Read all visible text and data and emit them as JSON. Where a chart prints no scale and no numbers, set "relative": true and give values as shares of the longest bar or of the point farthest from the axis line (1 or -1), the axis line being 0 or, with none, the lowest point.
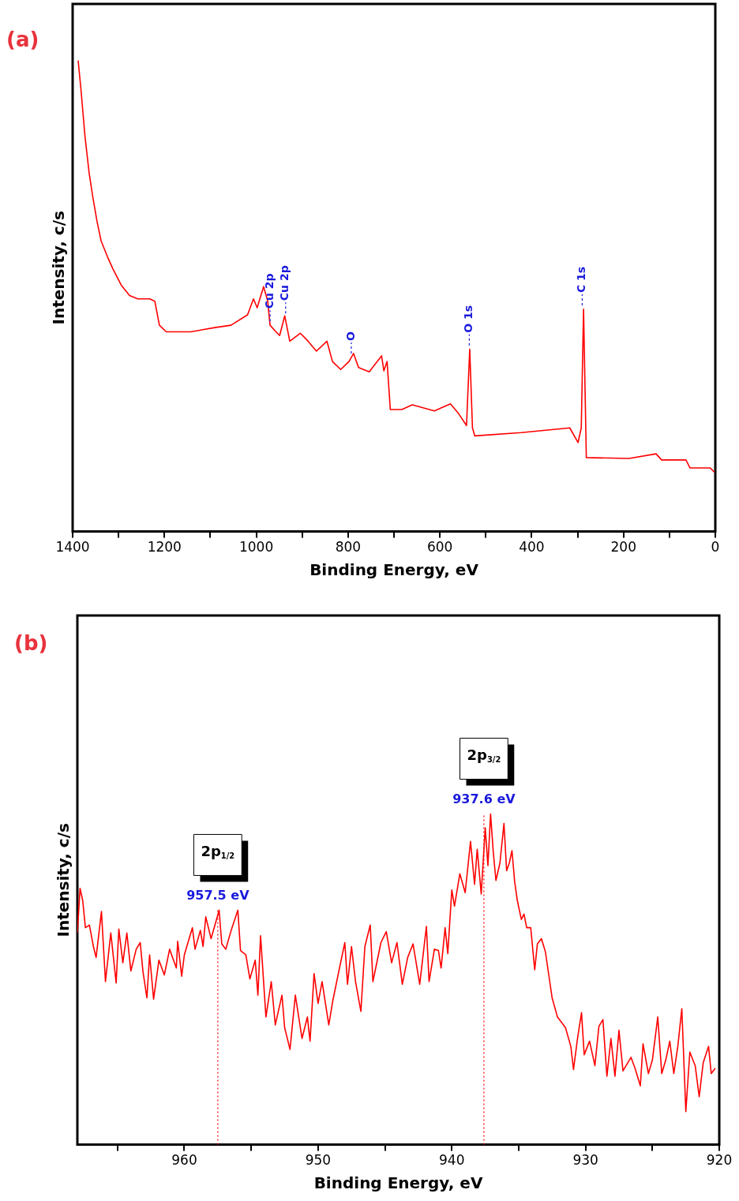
{
  "chart_data": [
    {
      "type": "line",
      "title": "(a)",
      "xlabel": "Binding Energy, eV",
      "ylabel": "Intensity, c/s",
      "relative": true,
      "xlim": [
        1400,
        0
      ],
      "xticks": [
        1400,
        {
          "value": 1300,
          "label": null
        },
        1200,
        {
          "value": 1100,
          "label": null
        },
        1000,
        {
          "value": 900,
          "label": null
        },
        800,
        {
          "value": 700,
          "label": null
        },
        600,
        {
          "value": 500,
          "label": null
        },
        400,
        {
          "value": 300,
          "label": null
        },
        200,
        {
          "value": 100,
          "label": null
        },
        0
      ],
      "series": [
        {
          "color": "#ff0000",
          "x": [
            1388,
            1382,
            1373,
            1364,
            1356,
            1347,
            1338,
            1324,
            1312,
            1294,
            1276,
            1258,
            1232,
            1221,
            1211,
            1196,
            1143,
            1090,
            1055,
            1019,
            1006,
            998,
            984,
            975,
            970,
            959,
            949,
            938,
            927,
            904,
            887,
            869,
            846,
            834,
            816,
            798,
            788,
            777,
            754,
            727,
            722,
            715,
            708,
            683,
            660,
            612,
            577,
            559,
            542,
            535,
            529,
            524,
            423,
            317,
            299,
            292,
            287,
            281,
            188,
            129,
            117,
            64,
            55,
            11,
            2
          ],
          "values": [
            1.0,
            0.94,
            0.838,
            0.761,
            0.71,
            0.659,
            0.617,
            0.583,
            0.557,
            0.523,
            0.501,
            0.494,
            0.494,
            0.489,
            0.438,
            0.424,
            0.424,
            0.433,
            0.438,
            0.46,
            0.494,
            0.475,
            0.52,
            0.489,
            0.438,
            0.426,
            0.416,
            0.458,
            0.404,
            0.421,
            0.404,
            0.383,
            0.404,
            0.361,
            0.344,
            0.361,
            0.378,
            0.348,
            0.339,
            0.373,
            0.341,
            0.361,
            0.259,
            0.259,
            0.269,
            0.256,
            0.271,
            0.25,
            0.225,
            0.387,
            0.22,
            0.203,
            0.21,
            0.22,
            0.189,
            0.22,
            0.472,
            0.157,
            0.155,
            0.165,
            0.152,
            0.152,
            0.135,
            0.135,
            0.126
          ]
        }
      ],
      "annotations": [
        {
          "text": "Cu 2p",
          "x": 970,
          "y": 0.446
        },
        {
          "text": "Cu 2p",
          "x": 936,
          "y": 0.463
        },
        {
          "text": "O",
          "x": 793,
          "y": 0.378
        },
        {
          "text": "O 1s",
          "x": 536,
          "y": 0.395
        },
        {
          "text": "C 1s",
          "x": 290,
          "y": 0.48
        }
      ]
    },
    {
      "type": "line",
      "title": "(b)",
      "xlabel": "Binding Energy, eV",
      "ylabel": "Intensity, c/s",
      "relative": true,
      "xlim": [
        968,
        920
      ],
      "xticks": [
        {
          "value": 965,
          "label": null
        },
        960,
        {
          "value": 955,
          "label": null
        },
        950,
        {
          "value": 945,
          "label": null
        },
        940,
        {
          "value": 935,
          "label": null
        },
        930,
        {
          "value": 925,
          "label": null
        },
        920
      ],
      "series": [
        {
          "color": "#ff0000",
          "x": [
            968.0,
            967.8,
            967.6,
            967.4,
            967.1,
            966.8,
            966.6,
            966.2,
            965.9,
            965.5,
            965.1,
            964.9,
            964.6,
            964.3,
            964.0,
            963.6,
            963.3,
            963.1,
            962.8,
            962.6,
            962.3,
            961.9,
            961.5,
            961.1,
            960.6,
            960.5,
            960.2,
            960.0,
            959.4,
            959.2,
            958.8,
            958.6,
            958.4,
            958.0,
            957.4,
            957.2,
            956.9,
            956.5,
            956.0,
            955.8,
            955.4,
            955.1,
            954.7,
            954.5,
            954.3,
            953.9,
            953.5,
            953.2,
            952.7,
            952.5,
            952.1,
            951.7,
            951.2,
            950.8,
            950.6,
            950.3,
            950.0,
            949.7,
            949.2,
            948.9,
            948.4,
            948.0,
            947.8,
            947.5,
            947.2,
            946.8,
            946.5,
            946.1,
            945.9,
            945.3,
            944.9,
            944.5,
            944.1,
            943.7,
            943.3,
            942.9,
            942.4,
            941.9,
            941.7,
            941.3,
            941.0,
            940.8,
            940.5,
            940.3,
            940.0,
            939.8,
            939.4,
            939.0,
            938.6,
            938.3,
            938.1,
            937.8,
            937.5,
            937.3,
            937.1,
            936.9,
            936.7,
            936.4,
            936.1,
            935.9,
            935.7,
            935.5,
            935.3,
            935.1,
            934.8,
            934.6,
            934.4,
            934.1,
            933.8,
            933.6,
            933.3,
            933.0,
            932.5,
            932.1,
            931.5,
            931.1,
            930.9,
            930.6,
            930.3,
            930.1,
            929.7,
            929.3,
            929.0,
            928.7,
            928.4,
            928.1,
            927.8,
            927.5,
            927.2,
            926.6,
            926.3,
            925.9,
            925.7,
            925.3,
            925.0,
            924.6,
            924.3,
            924.0,
            923.7,
            923.4,
            923.1,
            922.8,
            922.5,
            922.2,
            921.8,
            921.5,
            921.2,
            920.8,
            920.6,
            920.3
          ],
          "values": [
            0.64,
            0.775,
            0.738,
            0.656,
            0.664,
            0.599,
            0.566,
            0.705,
            0.493,
            0.64,
            0.489,
            0.652,
            0.55,
            0.64,
            0.525,
            0.591,
            0.611,
            0.525,
            0.444,
            0.574,
            0.44,
            0.558,
            0.513,
            0.591,
            0.534,
            0.615,
            0.509,
            0.574,
            0.656,
            0.591,
            0.648,
            0.599,
            0.689,
            0.623,
            0.709,
            0.607,
            0.591,
            0.648,
            0.709,
            0.587,
            0.574,
            0.501,
            0.558,
            0.452,
            0.632,
            0.386,
            0.493,
            0.362,
            0.452,
            0.354,
            0.288,
            0.452,
            0.321,
            0.386,
            0.313,
            0.517,
            0.427,
            0.493,
            0.362,
            0.435,
            0.534,
            0.611,
            0.485,
            0.599,
            0.493,
            0.403,
            0.599,
            0.664,
            0.493,
            0.611,
            0.644,
            0.55,
            0.611,
            0.485,
            0.566,
            0.607,
            0.485,
            0.66,
            0.493,
            0.591,
            0.587,
            0.534,
            0.656,
            0.578,
            0.77,
            0.721,
            0.819,
            0.762,
            0.917,
            0.787,
            0.893,
            0.758,
            0.958,
            0.844,
            1.0,
            0.885,
            0.799,
            0.852,
            0.971,
            0.828,
            0.852,
            0.889,
            0.795,
            0.738,
            0.681,
            0.697,
            0.656,
            0.656,
            0.529,
            0.607,
            0.623,
            0.583,
            0.444,
            0.386,
            0.354,
            0.297,
            0.227,
            0.321,
            0.399,
            0.272,
            0.313,
            0.239,
            0.358,
            0.378,
            0.207,
            0.321,
            0.207,
            0.346,
            0.223,
            0.264,
            0.231,
            0.178,
            0.305,
            0.215,
            0.256,
            0.386,
            0.215,
            0.256,
            0.313,
            0.215,
            0.297,
            0.411,
            0.1,
            0.28,
            0.239,
            0.145,
            0.248,
            0.297,
            0.215,
            0.231
          ]
        }
      ],
      "ref_lines": [
        {
          "axis": "x",
          "value": 957.5,
          "label": "957.5 eV",
          "color": "#ff0000",
          "line_style": "dotted"
        },
        {
          "axis": "x",
          "value": 937.6,
          "label": "937.6 eV",
          "color": "#ff0000",
          "line_style": "dotted"
        }
      ],
      "annotations": [
        "2p$_{1/2}$",
        "2p$_{3/2}$"
      ]
    }
  ]
}
